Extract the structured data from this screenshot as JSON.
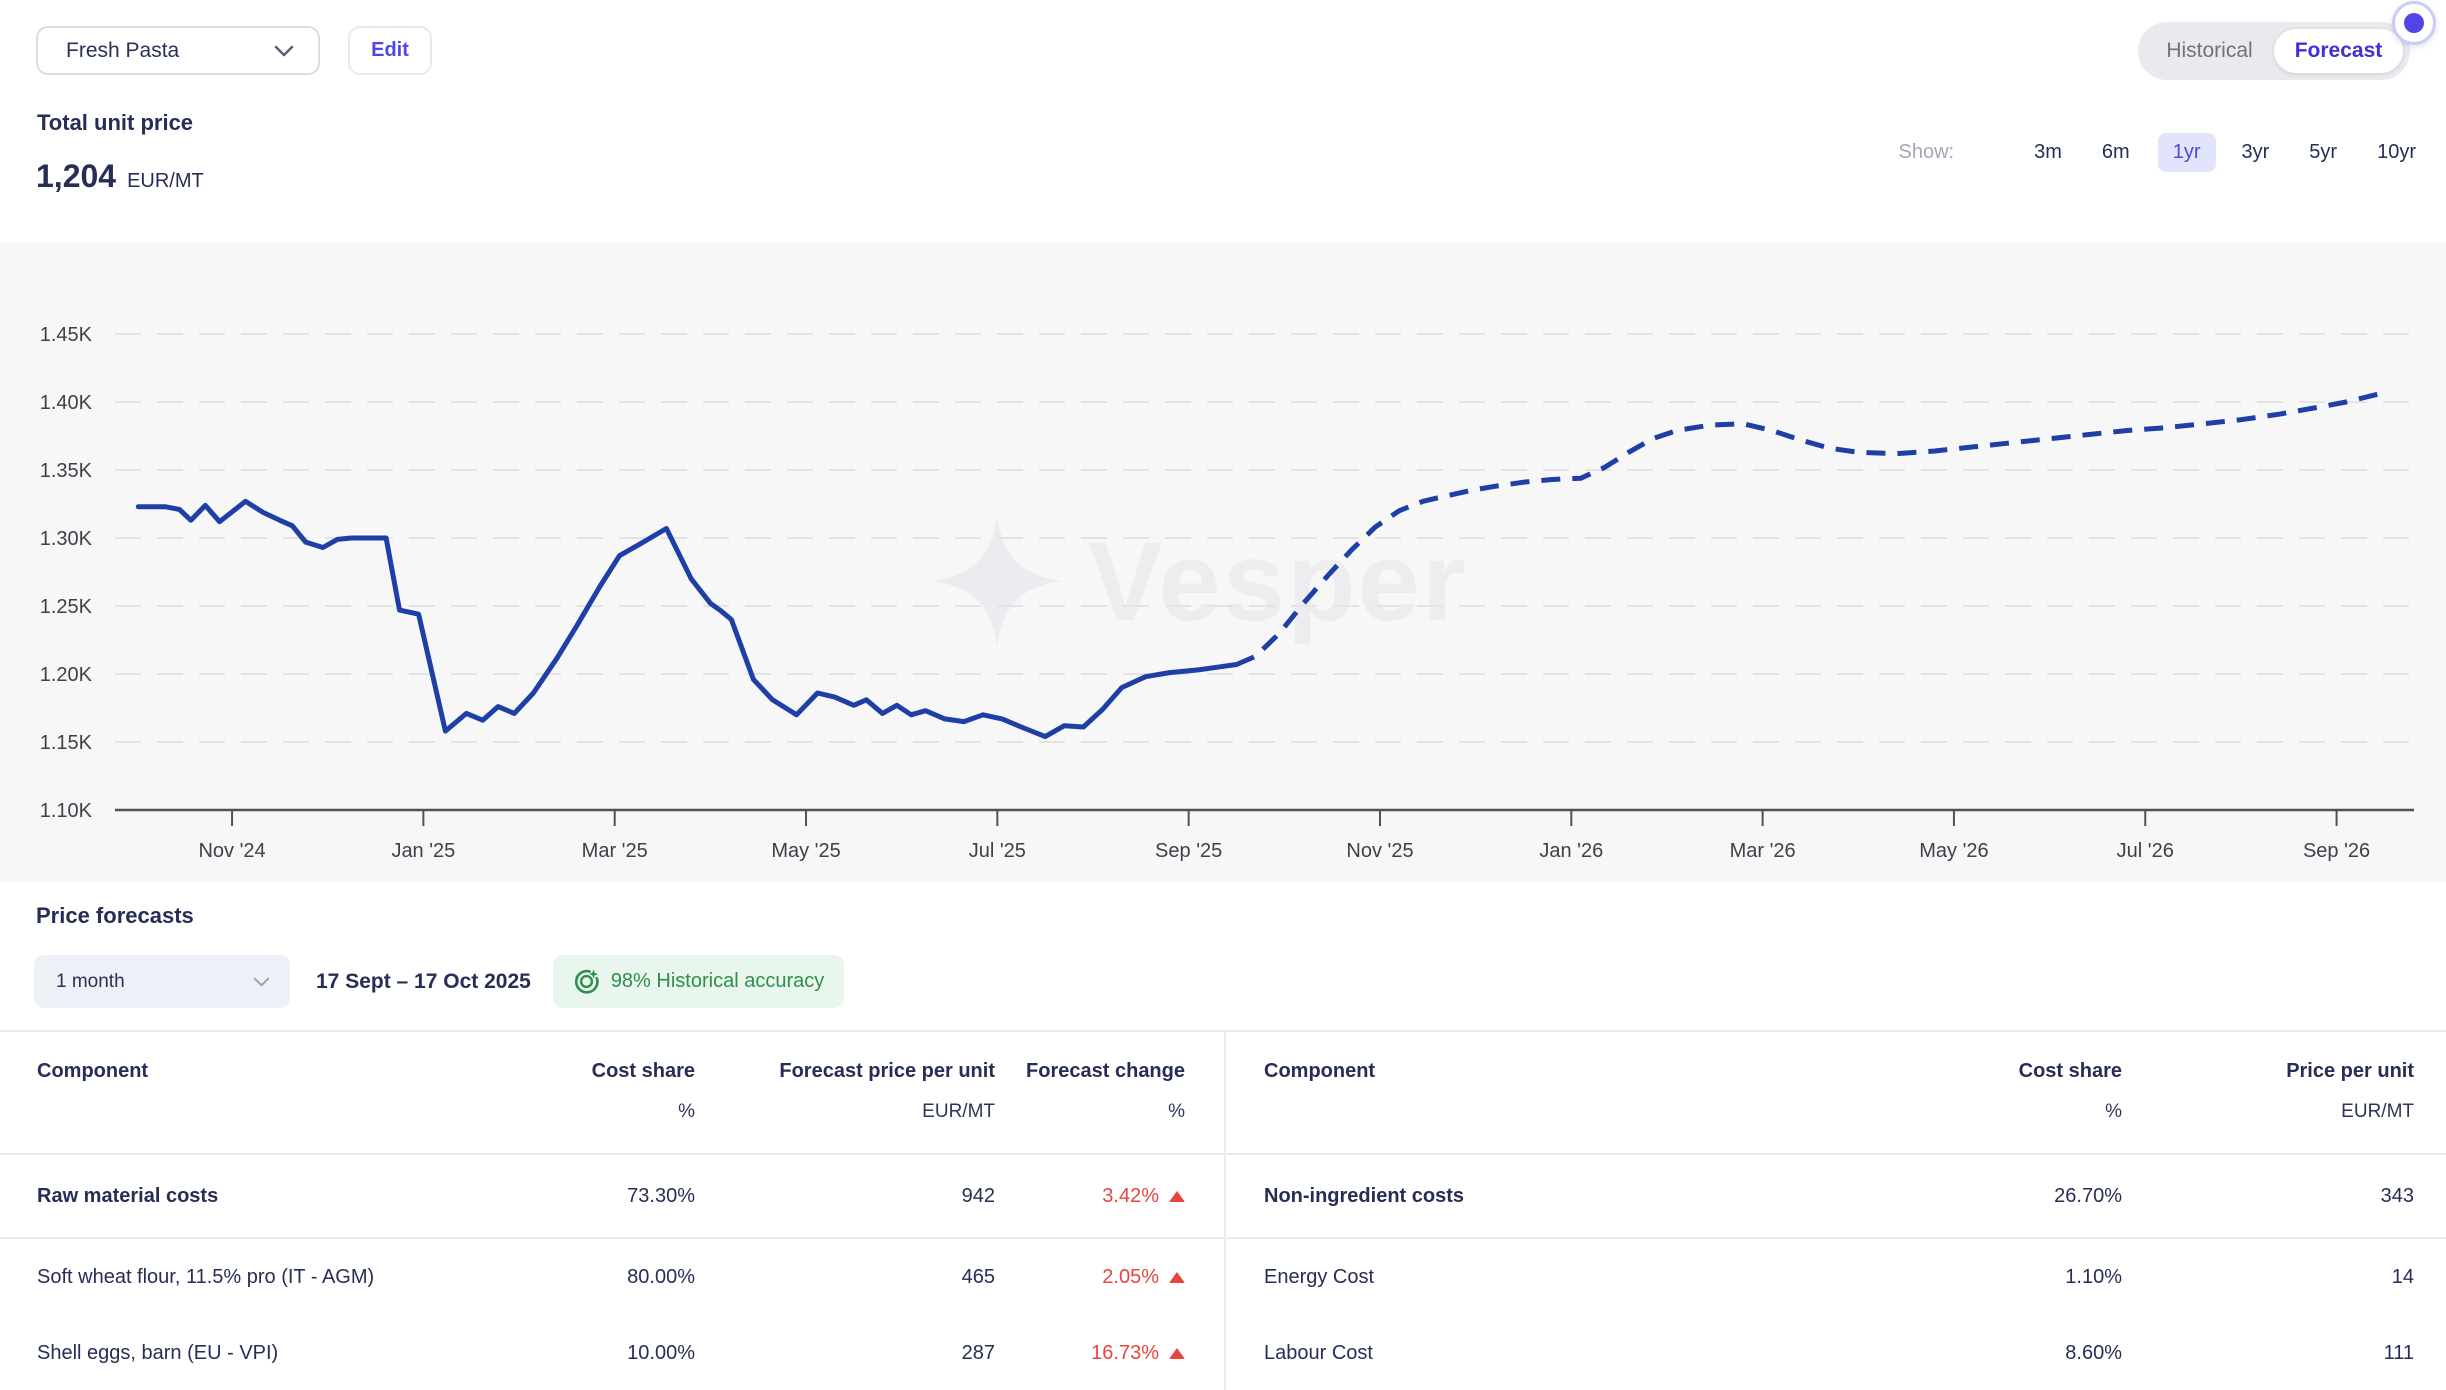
{
  "header": {
    "product_select": {
      "value": "Fresh Pasta"
    },
    "edit_label": "Edit",
    "view_toggle": {
      "options": [
        "Historical",
        "Forecast"
      ],
      "active": "Forecast"
    },
    "kpi": {
      "label": "Total unit price",
      "value": "1,204",
      "unit": "EUR/MT"
    },
    "show": {
      "label": "Show:",
      "options": [
        "3m",
        "6m",
        "1yr",
        "3yr",
        "5yr",
        "10yr"
      ],
      "active": "1yr"
    }
  },
  "colors": {
    "accent_purple": "#4f46e5",
    "forecast_toggle_text": "#4130d8",
    "chart_line_blue": "#1e3fa6",
    "negative_red": "#e8453f",
    "positive_green": "#2e8f4a",
    "band_background": "#f7f7f8"
  },
  "chart_data": {
    "type": "line",
    "title": "Total unit price",
    "unit": "EUR/MT",
    "watermark": "Vesper",
    "grid": "horizontal-dashed",
    "legend": "none",
    "ylim": [
      1100,
      1450
    ],
    "x_unit": "months since Oct 2024",
    "xlim_months": [
      -0.22,
      23.82
    ],
    "y_ticks": [
      {
        "v": 1450,
        "label": "1.45K"
      },
      {
        "v": 1400,
        "label": "1.40K"
      },
      {
        "v": 1350,
        "label": "1.35K"
      },
      {
        "v": 1300,
        "label": "1.30K"
      },
      {
        "v": 1250,
        "label": "1.25K"
      },
      {
        "v": 1200,
        "label": "1.20K"
      },
      {
        "v": 1150,
        "label": "1.15K"
      },
      {
        "v": 1100,
        "label": "1.10K"
      }
    ],
    "x_ticks": [
      {
        "m": 1,
        "label": "Nov '24"
      },
      {
        "m": 3,
        "label": "Jan '25"
      },
      {
        "m": 5,
        "label": "Mar '25"
      },
      {
        "m": 7,
        "label": "May '25"
      },
      {
        "m": 9,
        "label": "Jul '25"
      },
      {
        "m": 11,
        "label": "Sep '25"
      },
      {
        "m": 13,
        "label": "Nov '25"
      },
      {
        "m": 15,
        "label": "Jan '26"
      },
      {
        "m": 17,
        "label": "Mar '26"
      },
      {
        "m": 19,
        "label": "May '26"
      },
      {
        "m": 21,
        "label": "Jul '26"
      },
      {
        "m": 23,
        "label": "Sep '26"
      }
    ],
    "series": [
      {
        "name": "Historical",
        "style": "solid",
        "color": "#1e3fa6",
        "points": [
          [
            0.02,
            1323
          ],
          [
            0.3,
            1323
          ],
          [
            0.45,
            1321
          ],
          [
            0.57,
            1313
          ],
          [
            0.72,
            1324
          ],
          [
            0.87,
            1312
          ],
          [
            1.14,
            1327
          ],
          [
            1.32,
            1319
          ],
          [
            1.5,
            1313
          ],
          [
            1.63,
            1309
          ],
          [
            1.77,
            1297
          ],
          [
            1.95,
            1293
          ],
          [
            2.1,
            1299
          ],
          [
            2.25,
            1300
          ],
          [
            2.61,
            1300
          ],
          [
            2.75,
            1247
          ],
          [
            2.95,
            1244
          ],
          [
            3.23,
            1158
          ],
          [
            3.45,
            1171
          ],
          [
            3.62,
            1166
          ],
          [
            3.78,
            1176
          ],
          [
            3.95,
            1171
          ],
          [
            4.15,
            1186
          ],
          [
            4.4,
            1212
          ],
          [
            4.6,
            1235
          ],
          [
            4.85,
            1265
          ],
          [
            5.05,
            1287
          ],
          [
            5.25,
            1295
          ],
          [
            5.54,
            1307
          ],
          [
            5.8,
            1270
          ],
          [
            6.0,
            1252
          ],
          [
            6.1,
            1247
          ],
          [
            6.22,
            1240
          ],
          [
            6.45,
            1196
          ],
          [
            6.65,
            1181
          ],
          [
            6.9,
            1170
          ],
          [
            7.12,
            1186
          ],
          [
            7.3,
            1183
          ],
          [
            7.5,
            1177
          ],
          [
            7.63,
            1181
          ],
          [
            7.8,
            1171
          ],
          [
            7.95,
            1177
          ],
          [
            8.1,
            1170
          ],
          [
            8.25,
            1173
          ],
          [
            8.45,
            1167
          ],
          [
            8.65,
            1165
          ],
          [
            8.85,
            1170
          ],
          [
            9.05,
            1167
          ],
          [
            9.25,
            1161
          ],
          [
            9.5,
            1154
          ],
          [
            9.7,
            1162
          ],
          [
            9.9,
            1161
          ],
          [
            10.1,
            1174
          ],
          [
            10.3,
            1190
          ],
          [
            10.55,
            1198
          ],
          [
            10.8,
            1201
          ],
          [
            11.1,
            1203
          ],
          [
            11.3,
            1205
          ],
          [
            11.5,
            1207
          ]
        ]
      },
      {
        "name": "Forecast",
        "style": "dashed",
        "color": "#1e3fa6",
        "points": [
          [
            11.5,
            1207
          ],
          [
            11.7,
            1213
          ],
          [
            11.95,
            1230
          ],
          [
            12.2,
            1252
          ],
          [
            12.45,
            1272
          ],
          [
            12.7,
            1291
          ],
          [
            12.95,
            1308
          ],
          [
            13.2,
            1320
          ],
          [
            13.45,
            1327
          ],
          [
            13.7,
            1331
          ],
          [
            13.95,
            1335
          ],
          [
            14.2,
            1338
          ],
          [
            14.5,
            1341
          ],
          [
            14.8,
            1343
          ],
          [
            15.1,
            1344
          ],
          [
            15.35,
            1352
          ],
          [
            15.6,
            1363
          ],
          [
            15.85,
            1373
          ],
          [
            16.1,
            1379
          ],
          [
            16.45,
            1383
          ],
          [
            16.8,
            1384
          ],
          [
            17.1,
            1379
          ],
          [
            17.4,
            1372
          ],
          [
            17.7,
            1366
          ],
          [
            18.0,
            1363
          ],
          [
            18.4,
            1362
          ],
          [
            18.8,
            1364
          ],
          [
            19.2,
            1367
          ],
          [
            19.6,
            1370
          ],
          [
            20.0,
            1373
          ],
          [
            20.4,
            1376
          ],
          [
            20.8,
            1379
          ],
          [
            21.2,
            1381
          ],
          [
            21.6,
            1384
          ],
          [
            22.0,
            1387
          ],
          [
            22.4,
            1391
          ],
          [
            22.8,
            1396
          ],
          [
            23.1,
            1400
          ],
          [
            23.45,
            1406
          ]
        ]
      }
    ]
  },
  "forecast_section": {
    "title": "Price forecasts",
    "period_select": {
      "value": "1 month"
    },
    "date_range": "17 Sept – 17 Oct 2025",
    "accuracy_badge": "98% Historical accuracy"
  },
  "tables": {
    "left": {
      "columns": [
        {
          "label": "Component",
          "unit": ""
        },
        {
          "label": "Cost share",
          "unit": "%"
        },
        {
          "label": "Forecast price per unit",
          "unit": "EUR/MT"
        },
        {
          "label": "Forecast change",
          "unit": "%"
        }
      ],
      "rows": [
        {
          "component": "Raw material costs",
          "cost_share": "73.30%",
          "price": "942",
          "change": "3.42%",
          "direction": "up"
        },
        {
          "component": "Soft wheat flour, 11.5% pro (IT - AGM)",
          "cost_share": "80.00%",
          "price": "465",
          "change": "2.05%",
          "direction": "up"
        },
        {
          "component": "Shell eggs, barn (EU - VPI)",
          "cost_share": "10.00%",
          "price": "287",
          "change": "16.73%",
          "direction": "up"
        }
      ]
    },
    "right": {
      "columns": [
        {
          "label": "Component",
          "unit": ""
        },
        {
          "label": "Cost share",
          "unit": "%"
        },
        {
          "label": "Price per unit",
          "unit": "EUR/MT"
        }
      ],
      "rows": [
        {
          "component": "Non-ingredient costs",
          "cost_share": "26.70%",
          "price": "343"
        },
        {
          "component": "Energy Cost",
          "cost_share": "1.10%",
          "price": "14"
        },
        {
          "component": "Labour Cost",
          "cost_share": "8.60%",
          "price": "111"
        }
      ]
    }
  }
}
